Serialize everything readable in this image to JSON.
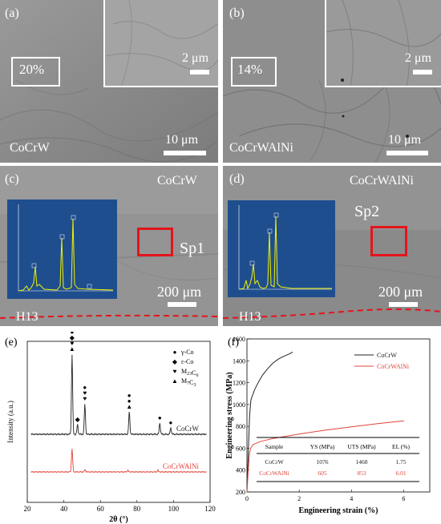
{
  "panels": {
    "a": {
      "label": "(a)",
      "box_label": "20%",
      "inset_scale": "2 μm",
      "scale": "10 μm",
      "sample": "CoCrW"
    },
    "b": {
      "label": "(b)",
      "box_label": "14%",
      "inset_scale": "2 μm",
      "scale": "10 μm",
      "sample": "CoCrWAlNi"
    },
    "c": {
      "label": "(c)",
      "sample": "CoCrW",
      "spot": "Sp1",
      "scale": "200 μm",
      "substrate": "H13"
    },
    "d": {
      "label": "(d)",
      "sample": "CoCrWAlNi",
      "spot": "Sp2",
      "scale": "200 μm",
      "substrate": "H13"
    },
    "e": {
      "label": "(e)"
    },
    "f": {
      "label": "(f)"
    }
  },
  "colors": {
    "red_marker": "#e4141b",
    "eds_bg": "#1f4e8f",
    "eds_peak": "#f2f200",
    "cocrw_line": "#222222",
    "cocrwalni_line": "#e0443a"
  },
  "chart_data": [
    {
      "type": "line",
      "panel": "e",
      "xlabel": "2θ (°)",
      "ylabel": "Intensity (a.u.)",
      "xlim": [
        20,
        120
      ],
      "xticks": [
        "20",
        "40",
        "60",
        "80",
        "100",
        "120"
      ],
      "legend": [
        {
          "symbol": "●",
          "text": "γ-Co"
        },
        {
          "symbol": "◆",
          "text": "ε-Co"
        },
        {
          "symbol": "♥",
          "text": "M23C6"
        },
        {
          "symbol": "▲",
          "text": "M7C3"
        }
      ],
      "legend_html": [
        "γ-Co",
        "ε-Co",
        "M<sub>23</sub>C<sub>6</sub>",
        "M<sub>7</sub>C<sub>3</sub>"
      ],
      "series": [
        {
          "name": "CoCrW",
          "peaks": [
            [
              44.5,
              1.0
            ],
            [
              47.5,
              0.12
            ],
            [
              51.5,
              0.38
            ],
            [
              75.8,
              0.28
            ],
            [
              92.5,
              0.14
            ],
            [
              98.5,
              0.08
            ]
          ]
        },
        {
          "name": "CoCrWAlNi",
          "peaks": [
            [
              44.5,
              0.42
            ],
            [
              51.6,
              0.04
            ],
            [
              75.0,
              0.03
            ],
            [
              91.5,
              0.03
            ]
          ]
        }
      ],
      "peak_markers": [
        {
          "x": 44.5,
          "symbols": [
            "●",
            "◆",
            "♥",
            "▲"
          ]
        },
        {
          "x": 47.5,
          "symbols": [
            "◆"
          ]
        },
        {
          "x": 51.5,
          "symbols": [
            "●",
            "♥",
            "♥"
          ]
        },
        {
          "x": 75.8,
          "symbols": [
            "●",
            "●",
            "▲"
          ]
        },
        {
          "x": 92.5,
          "symbols": [
            "●"
          ]
        },
        {
          "x": 98.5,
          "symbols": [
            "●"
          ]
        }
      ]
    },
    {
      "type": "line",
      "panel": "f",
      "xlabel": "Engineering strain (%)",
      "ylabel": "Engineering stress (MPa)",
      "xlim": [
        0,
        7
      ],
      "ylim": [
        200,
        1600
      ],
      "xticks": [
        0,
        2,
        4,
        6
      ],
      "yticks": [
        200,
        400,
        600,
        800,
        1000,
        1200,
        1400,
        1600
      ],
      "legend_position": "top-right",
      "series": [
        {
          "name": "CoCrW",
          "x": [
            0,
            0.05,
            0.1,
            0.15,
            0.2,
            0.3,
            0.45,
            0.6,
            0.8,
            1.0,
            1.2,
            1.4,
            1.6,
            1.75
          ],
          "y": [
            200,
            550,
            900,
            1040,
            1076,
            1140,
            1210,
            1270,
            1330,
            1380,
            1415,
            1440,
            1460,
            1480
          ]
        },
        {
          "name": "CoCrWAlNi",
          "x": [
            0,
            0.05,
            0.1,
            0.15,
            0.25,
            0.5,
            1.0,
            2.0,
            3.0,
            4.0,
            5.0,
            6.0,
            6.01
          ],
          "y": [
            200,
            400,
            560,
            605,
            635,
            660,
            690,
            730,
            765,
            795,
            825,
            850,
            853
          ]
        }
      ],
      "table": {
        "headers": [
          "Sample",
          "YS (MPa)",
          "UTS (MPa)",
          "EL (%)"
        ],
        "rows": [
          [
            "CoCrW",
            "1076",
            "1468",
            "1.75"
          ],
          [
            "CoCrWAlNi",
            "605",
            "853",
            "6.01"
          ]
        ]
      }
    }
  ]
}
